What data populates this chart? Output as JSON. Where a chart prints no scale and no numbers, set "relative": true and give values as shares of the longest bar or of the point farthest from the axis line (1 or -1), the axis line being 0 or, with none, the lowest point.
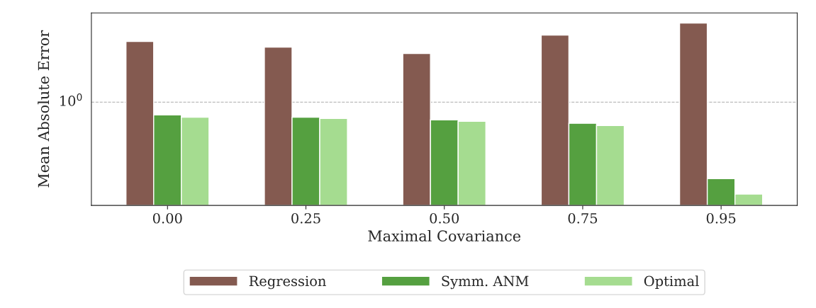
{
  "chart_data": {
    "type": "bar",
    "relative": true,
    "xlabel": "Maximal Covariance",
    "ylabel": "Mean Absolute Error",
    "categories": [
      "0.00",
      "0.25",
      "0.50",
      "0.75",
      "0.95"
    ],
    "series": [
      {
        "name": "Regression",
        "color": "#845a50",
        "values": [
          0.899,
          0.868,
          0.833,
          0.934,
          1.0
        ]
      },
      {
        "name": "Symm. ANM",
        "color": "#55a040",
        "values": [
          0.496,
          0.483,
          0.469,
          0.45,
          0.147
        ]
      },
      {
        "name": "Optimal",
        "color": "#a5dc90",
        "values": [
          0.483,
          0.477,
          0.461,
          0.438,
          0.062
        ]
      }
    ],
    "ref_lines": [
      {
        "axis": "y",
        "value": 0.566,
        "color": "#aaaaaa",
        "line_style": "dashed"
      }
    ],
    "annotations": [
      "10$^{0}$"
    ],
    "legend": "bottom"
  }
}
